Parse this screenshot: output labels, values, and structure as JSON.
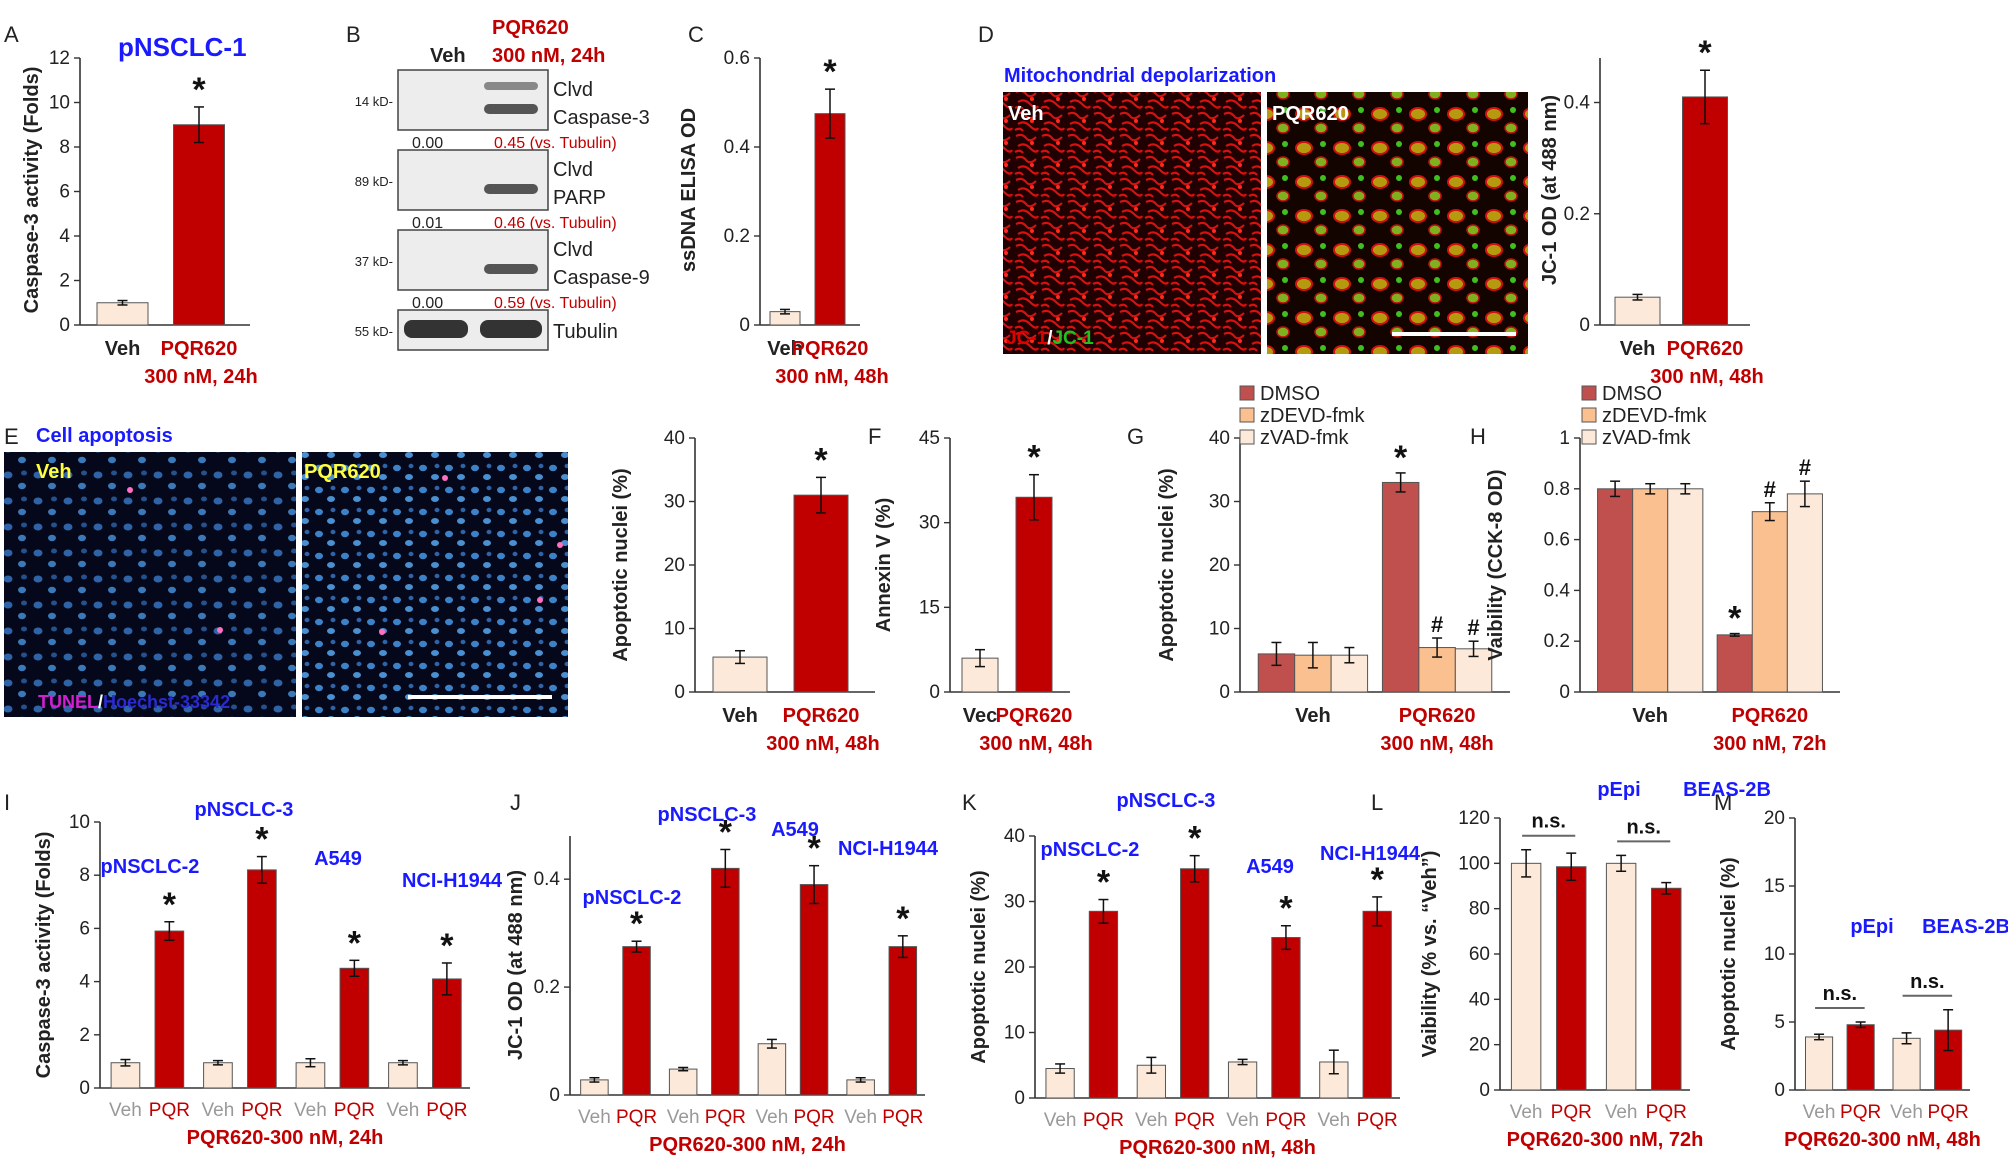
{
  "colors": {
    "veh": "#fde9d9",
    "pqr": "#c00000",
    "dmso": "#c0504d",
    "zdevd": "#fac090",
    "zvad": "#fde9d9",
    "blue": "#1a1aff",
    "red": "#c00000"
  },
  "panel_letters": [
    "A",
    "B",
    "C",
    "D",
    "E",
    "F",
    "G",
    "H",
    "I",
    "J",
    "K",
    "L",
    "M"
  ],
  "chart_data": [
    {
      "id": "A",
      "type": "bar",
      "title": "pNSCLC-1",
      "ylabel": "Caspase-3 activity (Folds)",
      "ylim": [
        0,
        12
      ],
      "yticks": [
        0,
        2,
        4,
        6,
        8,
        10,
        12
      ],
      "categories": [
        "Veh",
        "PQR620"
      ],
      "sublabel": "300 nM, 24h",
      "values": [
        1.0,
        9.0
      ],
      "errors": [
        0.1,
        0.8
      ],
      "stars": [
        "",
        "*"
      ]
    },
    {
      "id": "C",
      "type": "bar",
      "ylabel": "ssDNA ELISA OD",
      "ylim": [
        0,
        0.6
      ],
      "yticks": [
        0,
        0.2,
        0.4,
        0.6
      ],
      "categories": [
        "Veh",
        "PQR620"
      ],
      "sublabel": "300 nM, 48h",
      "values": [
        0.03,
        0.475
      ],
      "errors": [
        0.005,
        0.055
      ],
      "stars": [
        "",
        "*"
      ]
    },
    {
      "id": "D",
      "type": "bar",
      "ylabel": "JC-1 OD (at 488 nm)",
      "ylim": [
        0,
        0.48
      ],
      "yticks": [
        0,
        0.2,
        0.4
      ],
      "categories": [
        "Veh",
        "PQR620"
      ],
      "sublabel": "300 nM, 48h",
      "values": [
        0.05,
        0.41
      ],
      "errors": [
        0.005,
        0.048
      ],
      "stars": [
        "",
        "*"
      ]
    },
    {
      "id": "E",
      "type": "bar",
      "ylabel": "Apoptotic nuclei (%)",
      "ylim": [
        0,
        40
      ],
      "yticks": [
        0,
        10,
        20,
        30,
        40
      ],
      "categories": [
        "Veh",
        "PQR620"
      ],
      "sublabel": "300 nM, 48h",
      "values": [
        5.5,
        31.0
      ],
      "errors": [
        1.0,
        2.8
      ],
      "stars": [
        "",
        "*"
      ]
    },
    {
      "id": "F",
      "type": "bar",
      "ylabel": "Annexin V (%)",
      "ylim": [
        0,
        45
      ],
      "yticks": [
        0,
        15,
        30,
        45
      ],
      "categories": [
        "Vec",
        "PQR620"
      ],
      "sublabel": "300 nM, 48h",
      "values": [
        6.0,
        34.5
      ],
      "errors": [
        1.5,
        4.0
      ],
      "stars": [
        "",
        "*"
      ]
    },
    {
      "id": "G",
      "type": "bar",
      "ylabel": "Apoptotic nuclei (%)",
      "ylim": [
        0,
        40
      ],
      "yticks": [
        0,
        10,
        20,
        30,
        40
      ],
      "groups": [
        "Veh",
        "PQR620"
      ],
      "sublabel": "300 nM, 48h",
      "legend": [
        "DMSO",
        "zDEVD-fmk",
        "zVAD-fmk"
      ],
      "series": [
        {
          "name": "DMSO",
          "values": [
            6.0,
            33.0
          ],
          "errors": [
            1.8,
            1.5
          ]
        },
        {
          "name": "zDEVD-fmk",
          "values": [
            5.8,
            7.0
          ],
          "errors": [
            2.0,
            1.5
          ]
        },
        {
          "name": "zVAD-fmk",
          "values": [
            5.8,
            6.8
          ],
          "errors": [
            1.2,
            1.2
          ]
        }
      ],
      "marks": [
        [
          "",
          "",
          ""
        ],
        [
          "*",
          "#",
          "#"
        ]
      ]
    },
    {
      "id": "H",
      "type": "bar",
      "ylabel": "Vaibility (CCK-8 OD)",
      "ylim": [
        0,
        1
      ],
      "yticks": [
        0,
        0.2,
        0.4,
        0.6,
        0.8,
        1
      ],
      "groups": [
        "Veh",
        "PQR620"
      ],
      "sublabel": "300 nM, 72h",
      "legend": [
        "DMSO",
        "zDEVD-fmk",
        "zVAD-fmk"
      ],
      "series": [
        {
          "name": "DMSO",
          "values": [
            0.8,
            0.225
          ],
          "errors": [
            0.03,
            0.005
          ]
        },
        {
          "name": "zDEVD-fmk",
          "values": [
            0.8,
            0.71
          ],
          "errors": [
            0.02,
            0.035
          ]
        },
        {
          "name": "zVAD-fmk",
          "values": [
            0.8,
            0.78
          ],
          "errors": [
            0.02,
            0.05
          ]
        }
      ],
      "marks": [
        [
          "",
          "",
          ""
        ],
        [
          "*",
          "#",
          "#"
        ]
      ]
    },
    {
      "id": "I",
      "type": "bar",
      "ylabel": "Caspase-3 activity (Folds)",
      "ylim": [
        0,
        10
      ],
      "yticks": [
        0,
        2,
        4,
        6,
        8,
        10
      ],
      "xlabel": "PQR620-300 nM, 24h",
      "pair_labels": [
        "Veh",
        "PQR"
      ],
      "cell_lines": [
        "pNSCLC-2",
        "pNSCLC-3",
        "A549",
        "NCI-H1944"
      ],
      "veh": [
        0.95,
        0.95,
        0.95,
        0.95
      ],
      "veh_err": [
        0.12,
        0.08,
        0.15,
        0.08
      ],
      "pqr": [
        5.9,
        8.2,
        4.5,
        4.1
      ],
      "pqr_err": [
        0.35,
        0.5,
        0.3,
        0.6
      ],
      "stars": [
        "*",
        "*",
        "*",
        "*"
      ]
    },
    {
      "id": "J",
      "type": "bar",
      "ylabel": "JC-1 OD (at 488 nm)",
      "ylim": [
        0,
        0.48
      ],
      "yticks": [
        0,
        0.2,
        0.4
      ],
      "xlabel": "PQR620-300 nM, 24h",
      "pair_labels": [
        "Veh",
        "PQR"
      ],
      "cell_lines": [
        "pNSCLC-2",
        "pNSCLC-3",
        "A549",
        "NCI-H1944"
      ],
      "veh": [
        0.028,
        0.048,
        0.095,
        0.028
      ],
      "veh_err": [
        0.004,
        0.003,
        0.008,
        0.004
      ],
      "pqr": [
        0.275,
        0.42,
        0.39,
        0.275
      ],
      "pqr_err": [
        0.01,
        0.035,
        0.035,
        0.02
      ],
      "stars": [
        "*",
        "*",
        "*",
        "*"
      ]
    },
    {
      "id": "K",
      "type": "bar",
      "ylabel": "Apoptotic nuclei (%)",
      "ylim": [
        0,
        40
      ],
      "yticks": [
        0,
        10,
        20,
        30,
        40
      ],
      "xlabel": "PQR620-300 nM, 48h",
      "pair_labels": [
        "Veh",
        "PQR"
      ],
      "cell_lines": [
        "pNSCLC-2",
        "pNSCLC-3",
        "A549",
        "NCI-H1944"
      ],
      "veh": [
        4.5,
        5.0,
        5.5,
        5.5
      ],
      "veh_err": [
        0.7,
        1.2,
        0.4,
        1.8
      ],
      "pqr": [
        28.5,
        35.0,
        24.5,
        28.5
      ],
      "pqr_err": [
        1.8,
        2.0,
        1.8,
        2.2
      ],
      "stars": [
        "*",
        "*",
        "*",
        "*"
      ]
    },
    {
      "id": "L",
      "type": "bar",
      "ylabel": "Vaibility (% vs. “Veh”)",
      "ylim": [
        0,
        120
      ],
      "yticks": [
        0,
        20,
        40,
        60,
        80,
        100,
        120
      ],
      "xlabel": "PQR620-300 nM, 72h",
      "pair_labels": [
        "Veh",
        "PQR"
      ],
      "cell_lines": [
        "pEpi",
        "BEAS-2B"
      ],
      "veh": [
        100,
        100
      ],
      "veh_err": [
        6,
        3.5
      ],
      "pqr": [
        98.5,
        89
      ],
      "pqr_err": [
        6,
        2.5
      ],
      "sig": [
        "n.s.",
        "n.s."
      ]
    },
    {
      "id": "M",
      "type": "bar",
      "ylabel": "Apoptotic nuclei (%)",
      "ylim": [
        0,
        20
      ],
      "yticks": [
        0,
        5,
        10,
        15,
        20
      ],
      "xlabel": "PQR620-300 nM, 48h",
      "pair_labels": [
        "Veh",
        "PQR"
      ],
      "cell_lines": [
        "pEpi",
        "BEAS-2B"
      ],
      "veh": [
        3.9,
        3.8
      ],
      "veh_err": [
        0.2,
        0.4
      ],
      "pqr": [
        4.8,
        4.4
      ],
      "pqr_err": [
        0.2,
        1.5
      ],
      "sig": [
        "n.s.",
        "n.s."
      ]
    }
  ],
  "blot": {
    "header": [
      "Veh",
      "PQR620",
      "300 nM, 24h"
    ],
    "bands": [
      {
        "kd": "14 kD-",
        "label": [
          "Clvd",
          "Caspase-3"
        ],
        "veh_val": "0.00",
        "pqr_val": "0.45 (vs. Tubulin)"
      },
      {
        "kd": "89 kD-",
        "label": [
          "Clvd",
          "PARP"
        ],
        "veh_val": "0.01",
        "pqr_val": "0.46 (vs. Tubulin)"
      },
      {
        "kd": "37 kD-",
        "label": [
          "Clvd",
          "Caspase-9"
        ],
        "veh_val": "0.00",
        "pqr_val": "0.59 (vs. Tubulin)"
      },
      {
        "kd": "55 kD-",
        "label": [
          "Tubulin"
        ]
      }
    ]
  },
  "image_panels": {
    "D": {
      "title": "Mitochondrial depolarization",
      "left": "Veh",
      "right": "PQR620",
      "stain_a": "JC-1",
      "sep": "/",
      "stain_b": "JC-1"
    },
    "E": {
      "title": "Cell apoptosis",
      "left": "Veh",
      "right": "PQR620",
      "stain_a": "TUNEL",
      "sep": "/",
      "stain_b": "Hoechst-33342"
    }
  }
}
